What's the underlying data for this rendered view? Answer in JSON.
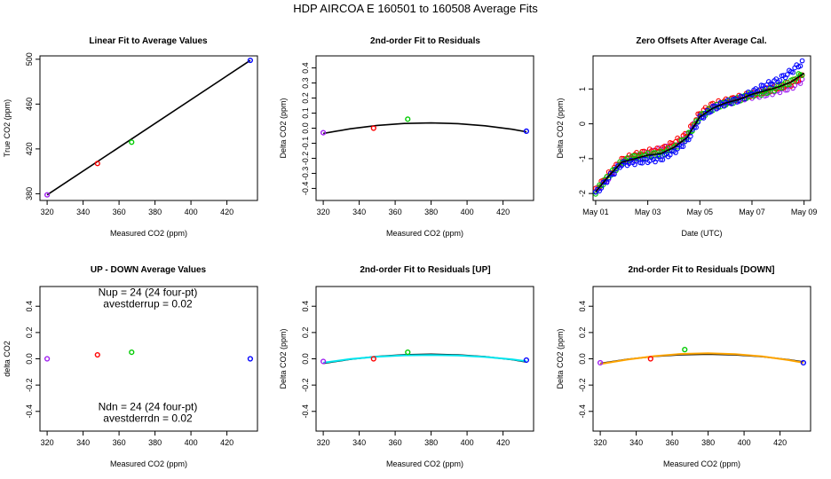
{
  "figure": {
    "title": "HDP   AIRCOA E   160501 to 160508   Average Fits"
  },
  "colors": {
    "purple": "#a020f0",
    "red": "#ff0000",
    "green": "#00cc00",
    "blue": "#0000ff",
    "cyan": "#00e5ee",
    "orange": "#ffa500",
    "black": "#000000"
  },
  "chart_data": [
    {
      "id": "p1",
      "type": "scatter",
      "title": "Linear Fit to Average Values",
      "xlabel": "Measured CO2 (ppm)",
      "ylabel": "True CO2 (ppm)",
      "xlim": [
        316,
        437
      ],
      "ylim": [
        374,
        503
      ],
      "xticks": [
        320,
        340,
        360,
        380,
        400,
        420
      ],
      "xtick_labels": [
        "320",
        "340",
        "360",
        "380",
        "400",
        "420"
      ],
      "yticks": [
        380,
        420,
        460,
        500
      ],
      "ytick_labels": [
        "380",
        "420",
        "460",
        "500"
      ],
      "points": [
        {
          "x": 320,
          "y": 379,
          "c": "purple"
        },
        {
          "x": 348,
          "y": 407,
          "c": "red"
        },
        {
          "x": 367,
          "y": 426,
          "c": "green"
        },
        {
          "x": 433,
          "y": 499,
          "c": "blue"
        }
      ],
      "lines": [
        {
          "c": "black",
          "x": [
            320,
            433
          ],
          "y": [
            379,
            499
          ]
        }
      ]
    },
    {
      "id": "p2",
      "type": "scatter",
      "title": "2nd-order Fit to Residuals",
      "xlabel": "Measured CO2 (ppm)",
      "ylabel": "Delta CO2 (ppm)",
      "xlim": [
        316,
        437
      ],
      "ylim": [
        -0.48,
        0.48
      ],
      "xticks": [
        320,
        340,
        360,
        380,
        400,
        420
      ],
      "xtick_labels": [
        "320",
        "340",
        "360",
        "380",
        "400",
        "420"
      ],
      "yticks": [
        -0.4,
        -0.3,
        -0.2,
        -0.1,
        0,
        0.1,
        0.2,
        0.3,
        0.4
      ],
      "ytick_labels": [
        "-0.4",
        "-0.3",
        "-0.2",
        "-0.1",
        "0.0",
        "0.1",
        "0.2",
        "0.3",
        "0.4"
      ],
      "points": [
        {
          "x": 320,
          "y": -0.03,
          "c": "purple"
        },
        {
          "x": 348,
          "y": 0.0,
          "c": "red"
        },
        {
          "x": 367,
          "y": 0.06,
          "c": "green"
        },
        {
          "x": 433,
          "y": -0.02,
          "c": "blue"
        }
      ],
      "lines": [
        {
          "c": "black",
          "x": [
            320,
            335,
            350,
            365,
            380,
            395,
            410,
            425,
            433
          ],
          "y": [
            -0.035,
            -0.004,
            0.018,
            0.031,
            0.035,
            0.03,
            0.016,
            -0.007,
            -0.024
          ]
        }
      ]
    },
    {
      "id": "p3",
      "type": "line",
      "title": "Zero Offsets After Average Cal.",
      "xlabel": "Date (UTC)",
      "ylabel": "Delta CO2 (ppm)",
      "xlim": [
        -0.1,
        8.25
      ],
      "ylim": [
        -2.2,
        1.95
      ],
      "xticks": [
        0,
        2,
        4,
        6,
        8
      ],
      "xtick_labels": [
        "May 01",
        "May 03",
        "May 05",
        "May 07",
        "May 09"
      ],
      "yticks": [
        -2,
        -1,
        0,
        1
      ],
      "ytick_labels": [
        "-2",
        "-1",
        "0",
        "1"
      ],
      "series": [
        {
          "name": "purple",
          "c": "purple",
          "x": [
            0,
            0.5,
            1,
            1.5,
            2,
            2.5,
            3,
            3.5,
            4,
            4.5,
            5,
            5.5,
            6,
            6.5,
            7,
            7.5,
            8
          ],
          "y": [
            -1.95,
            -1.55,
            -1.1,
            -1.0,
            -0.85,
            -0.75,
            -0.65,
            -0.35,
            0.2,
            0.45,
            0.6,
            0.7,
            0.8,
            0.85,
            0.95,
            1.05,
            1.3
          ]
        },
        {
          "name": "red",
          "c": "red",
          "x": [
            0,
            0.5,
            1,
            1.5,
            2,
            2.5,
            3,
            3.5,
            4,
            4.5,
            5,
            5.5,
            6,
            6.5,
            7,
            7.5,
            8
          ],
          "y": [
            -1.9,
            -1.45,
            -1.05,
            -0.9,
            -0.8,
            -0.75,
            -0.55,
            -0.3,
            0.3,
            0.55,
            0.65,
            0.75,
            0.85,
            0.95,
            1.05,
            1.15,
            1.4
          ]
        },
        {
          "name": "green",
          "c": "green",
          "x": [
            0,
            0.5,
            1,
            1.5,
            2,
            2.5,
            3,
            3.5,
            4,
            4.5,
            5,
            5.5,
            6,
            6.5,
            7,
            7.5,
            8
          ],
          "y": [
            -1.95,
            -1.5,
            -1.1,
            -0.95,
            -0.9,
            -0.85,
            -0.7,
            -0.4,
            0.2,
            0.45,
            0.6,
            0.7,
            0.85,
            0.9,
            1.05,
            1.2,
            1.5
          ]
        },
        {
          "name": "blue",
          "c": "blue",
          "x": [
            0,
            0.5,
            1,
            1.5,
            2,
            2.5,
            3,
            3.5,
            4,
            4.5,
            5,
            5.5,
            6,
            6.5,
            7,
            7.5,
            8
          ],
          "y": [
            -2.0,
            -1.55,
            -1.15,
            -1.1,
            -1.05,
            -1.0,
            -0.8,
            -0.5,
            0.15,
            0.45,
            0.6,
            0.7,
            0.9,
            1.1,
            1.25,
            1.5,
            1.8
          ]
        }
      ],
      "lines": [
        {
          "c": "black",
          "x": [
            0,
            0.5,
            1,
            1.5,
            2,
            2.5,
            3,
            3.5,
            4,
            4.5,
            5,
            5.5,
            6,
            6.5,
            7,
            7.5,
            8
          ],
          "y": [
            -1.95,
            -1.5,
            -1.1,
            -1.0,
            -0.9,
            -0.85,
            -0.68,
            -0.4,
            0.2,
            0.45,
            0.6,
            0.7,
            0.85,
            0.95,
            1.05,
            1.2,
            1.45
          ]
        }
      ]
    },
    {
      "id": "p4",
      "type": "scatter",
      "title": "UP - DOWN Average Values",
      "xlabel": "Measured CO2 (ppm)",
      "ylabel": "delta CO2",
      "xlim": [
        316,
        437
      ],
      "ylim": [
        -0.55,
        0.55
      ],
      "xticks": [
        320,
        340,
        360,
        380,
        400,
        420
      ],
      "xtick_labels": [
        "320",
        "340",
        "360",
        "380",
        "400",
        "420"
      ],
      "yticks": [
        -0.4,
        -0.2,
        0,
        0.2,
        0.4
      ],
      "ytick_labels": [
        "-0.4",
        "-0.2",
        "0.0",
        "0.2",
        "0.4"
      ],
      "points": [
        {
          "x": 320,
          "y": 0.0,
          "c": "purple"
        },
        {
          "x": 348,
          "y": 0.03,
          "c": "red"
        },
        {
          "x": 367,
          "y": 0.05,
          "c": "green"
        },
        {
          "x": 433,
          "y": 0.0,
          "c": "blue"
        }
      ],
      "annotations": [
        {
          "text": "Nup = 24 (24 four-pt)",
          "x": 376,
          "y": 0.48
        },
        {
          "text": "avestderrup =  0.02",
          "x": 376,
          "y": 0.39
        },
        {
          "text": "Ndn = 24 (24 four-pt)",
          "x": 376,
          "y": -0.39
        },
        {
          "text": "avestderrdn =  0.02",
          "x": 376,
          "y": -0.48
        }
      ]
    },
    {
      "id": "p5",
      "type": "scatter",
      "title": "2nd-order Fit to Residuals [UP]",
      "xlabel": "Measured CO2 (ppm)",
      "ylabel": "Delta CO2 (ppm)",
      "xlim": [
        316,
        437
      ],
      "ylim": [
        -0.55,
        0.55
      ],
      "xticks": [
        320,
        340,
        360,
        380,
        400,
        420
      ],
      "xtick_labels": [
        "320",
        "340",
        "360",
        "380",
        "400",
        "420"
      ],
      "yticks": [
        -0.4,
        -0.2,
        0,
        0.2,
        0.4
      ],
      "ytick_labels": [
        "-0.4",
        "-0.2",
        "0.0",
        "0.2",
        "0.4"
      ],
      "points": [
        {
          "x": 320,
          "y": -0.02,
          "c": "purple"
        },
        {
          "x": 348,
          "y": 0.0,
          "c": "red"
        },
        {
          "x": 367,
          "y": 0.05,
          "c": "green"
        },
        {
          "x": 433,
          "y": -0.01,
          "c": "blue"
        }
      ],
      "lines": [
        {
          "c": "black",
          "x": [
            320,
            335,
            350,
            365,
            380,
            395,
            410,
            425,
            433
          ],
          "y": [
            -0.035,
            -0.004,
            0.018,
            0.031,
            0.035,
            0.03,
            0.016,
            -0.007,
            -0.024
          ]
        },
        {
          "c": "cyan",
          "x": [
            320,
            335,
            350,
            365,
            380,
            395,
            410,
            425,
            433
          ],
          "y": [
            -0.03,
            -0.002,
            0.016,
            0.026,
            0.029,
            0.025,
            0.014,
            -0.004,
            -0.018
          ]
        }
      ]
    },
    {
      "id": "p6",
      "type": "scatter",
      "title": "2nd-order Fit to Residuals [DOWN]",
      "xlabel": "Measured CO2 (ppm)",
      "ylabel": "Delta CO2 (ppm)",
      "xlim": [
        316,
        437
      ],
      "ylim": [
        -0.55,
        0.55
      ],
      "xticks": [
        320,
        340,
        360,
        380,
        400,
        420
      ],
      "xtick_labels": [
        "320",
        "340",
        "360",
        "380",
        "400",
        "420"
      ],
      "yticks": [
        -0.4,
        -0.2,
        0,
        0.2,
        0.4
      ],
      "ytick_labels": [
        "-0.4",
        "-0.2",
        "0.0",
        "0.2",
        "0.4"
      ],
      "points": [
        {
          "x": 320,
          "y": -0.03,
          "c": "purple"
        },
        {
          "x": 348,
          "y": 0.0,
          "c": "red"
        },
        {
          "x": 367,
          "y": 0.07,
          "c": "green"
        },
        {
          "x": 433,
          "y": -0.03,
          "c": "blue"
        }
      ],
      "lines": [
        {
          "c": "black",
          "x": [
            320,
            335,
            350,
            365,
            380,
            395,
            410,
            425,
            433
          ],
          "y": [
            -0.035,
            -0.004,
            0.018,
            0.031,
            0.035,
            0.03,
            0.016,
            -0.007,
            -0.024
          ]
        },
        {
          "c": "orange",
          "x": [
            320,
            335,
            350,
            365,
            380,
            395,
            410,
            425,
            433
          ],
          "y": [
            -0.04,
            -0.006,
            0.02,
            0.037,
            0.042,
            0.036,
            0.018,
            -0.01,
            -0.03
          ]
        }
      ]
    }
  ]
}
